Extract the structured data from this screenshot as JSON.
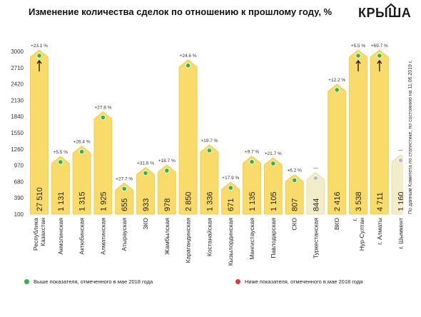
{
  "title": "Изменение количества сделок по отношению к прошлому году, %",
  "brand": "КРЫША",
  "note": "По данным Комитета по статистике, по состоянию на 11.06.2019 г.",
  "legend": {
    "above": "Выше показателя, отмеченного в мае 2018 года",
    "below": "Ниже показателя, отмеченного в мае 2018 года"
  },
  "colors": {
    "bar": "#f9db6a",
    "bar_outline": "#f2c63a",
    "bar_gray": "#f3ecc8",
    "above": "#2ab44a",
    "below": "#e8332a",
    "neutral": "#bbbbbb"
  },
  "chart_data": {
    "type": "bar",
    "title": "Изменение количества сделок по отношению к прошлому году, %",
    "ylim": [
      100,
      3000
    ],
    "yticks": [
      3000,
      2710,
      2420,
      2130,
      1840,
      1550,
      1260,
      970,
      680,
      390,
      100
    ],
    "categories": [
      "Республика Казахстан",
      "Акмолинская",
      "Актюбинская",
      "Алматинская",
      "Атырауская",
      "ЗКО",
      "Жамбылская",
      "Карагандинская",
      "Костанайская",
      "Кызылординская",
      "Мангистауская",
      "Павлодарская",
      "СКО",
      "Туркестанская",
      "ВКО",
      "г. Нур-Султан",
      "г. Алматы",
      "г. Шымкент"
    ],
    "values": [
      27510,
      1131,
      1315,
      1925,
      655,
      933,
      978,
      2850,
      1336,
      671,
      1135,
      1105,
      807,
      844,
      2416,
      3538,
      4711,
      1160
    ],
    "value_labels": [
      "27 510",
      "1 131",
      "1 315",
      "1 925",
      "655",
      "933",
      "978",
      "2 850",
      "1 336",
      "671",
      "1 135",
      "1 105",
      "807",
      "844",
      "2 416",
      "3 538",
      "4 711",
      "1 160"
    ],
    "change_labels": [
      "+23.1 %",
      "+5.5 %",
      "+26.4 %",
      "+27.8 %",
      "+27.7 %",
      "+31.6 %",
      "+18.7 %",
      "+24.6 %",
      "+19.7 %",
      "+17.9 %",
      "+9.7 %",
      "+21.7 %",
      "+6.2 %",
      "—",
      "+12.2 %",
      "+5.5 %",
      "+69.7 %",
      "—"
    ],
    "markers": [
      "above",
      "above",
      "above",
      "above",
      "above",
      "above",
      "above",
      "above",
      "above",
      "above",
      "above",
      "above",
      "above",
      "neutral",
      "above",
      "above",
      "above",
      "neutral"
    ],
    "exceeds_axis": [
      true,
      false,
      false,
      false,
      false,
      false,
      false,
      false,
      false,
      false,
      false,
      false,
      false,
      false,
      false,
      true,
      true,
      false
    ]
  }
}
